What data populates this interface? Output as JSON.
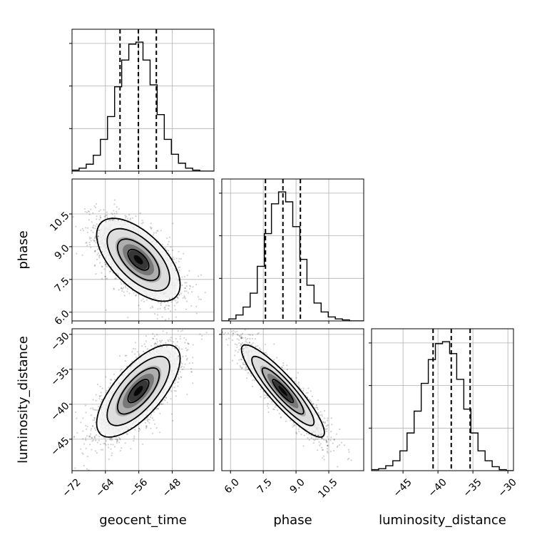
{
  "chart_data": {
    "type": "corner",
    "parameters": [
      "geocent_time",
      "phase",
      "luminosity_distance"
    ],
    "axis_labels": {
      "x": [
        "geocent_time",
        "phase",
        "luminosity_distance"
      ],
      "y": [
        "phase",
        "luminosity_distance"
      ]
    },
    "ranges": {
      "geocent_time": [
        -72,
        -38
      ],
      "phase": [
        5.6,
        12.1
      ],
      "luminosity_distance": [
        -49.5,
        -29.2
      ]
    },
    "ticks": {
      "geocent_time": [
        "−72",
        "−64",
        "−56",
        "−48"
      ],
      "phase": [
        "6.0",
        "7.5",
        "9.0",
        "10.5"
      ],
      "luminosity_distance": [
        "−45",
        "−40",
        "−35",
        "−30"
      ]
    },
    "tick_values": {
      "geocent_time": [
        -72,
        -64,
        -56,
        -48
      ],
      "phase": [
        6.0,
        7.5,
        9.0,
        10.5
      ],
      "luminosity_distance": [
        -45,
        -40,
        -35,
        -30
      ]
    },
    "quantiles": {
      "geocent_time": [
        -60.5,
        -56.1,
        -51.8
      ],
      "phase": [
        7.6,
        8.4,
        9.2
      ],
      "luminosity_distance": [
        -40.7,
        -38.1,
        -35.4
      ]
    },
    "marginals": {
      "geocent_time": {
        "bins": [
          -72.0,
          -70.3,
          -68.6,
          -66.9,
          -65.2,
          -63.5,
          -61.8,
          -60.1,
          -58.4,
          -56.7,
          -55.0,
          -53.3,
          -51.6,
          -49.9,
          -48.2,
          -46.5,
          -44.8,
          -43.1,
          -41.4,
          -39.7,
          -38.0
        ],
        "counts": [
          1,
          3,
          7,
          16,
          32,
          55,
          85,
          112,
          128,
          130,
          112,
          87,
          57,
          32,
          17,
          8,
          3,
          1,
          0,
          0
        ]
      },
      "phase": {
        "bins": [
          5.6,
          5.925,
          6.25,
          6.575,
          6.9,
          7.225,
          7.55,
          7.875,
          8.2,
          8.525,
          8.85,
          9.175,
          9.5,
          9.825,
          10.15,
          10.475,
          10.8,
          11.125,
          11.45,
          11.775,
          12.1
        ],
        "counts": [
          0,
          2,
          6,
          14,
          28,
          55,
          88,
          118,
          130,
          120,
          95,
          62,
          36,
          18,
          9,
          4,
          2,
          1,
          0,
          0
        ]
      },
      "luminosity_distance": {
        "bins": [
          -49.5,
          -48.485,
          -47.47,
          -46.455,
          -45.44,
          -44.425,
          -43.41,
          -42.395,
          -41.38,
          -40.365,
          -39.35,
          -38.335,
          -37.32,
          -36.305,
          -35.29,
          -34.275,
          -33.26,
          -32.245,
          -31.23,
          -30.215,
          -29.2
        ],
        "counts": [
          1,
          2,
          5,
          10,
          20,
          38,
          60,
          88,
          112,
          128,
          130,
          118,
          92,
          62,
          38,
          20,
          10,
          4,
          1,
          0
        ]
      }
    },
    "pairs": [
      {
        "x": "geocent_time",
        "y": "phase",
        "correlation": -0.6,
        "center": [
          -56.1,
          8.4
        ],
        "sigma": [
          5.0,
          0.95
        ]
      },
      {
        "x": "geocent_time",
        "y": "luminosity_distance",
        "correlation": 0.7,
        "center": [
          -56.1,
          -38.1
        ],
        "sigma": [
          5.0,
          3.3
        ]
      },
      {
        "x": "phase",
        "y": "luminosity_distance",
        "correlation": -0.9,
        "center": [
          8.4,
          -38.1
        ],
        "sigma": [
          0.95,
          3.3
        ]
      }
    ],
    "contour_levels_sigma": [
      0.5,
      1.0,
      1.5,
      2.0
    ],
    "grid": true,
    "colors": {
      "line": "#000000",
      "grid": "#b0b0b0",
      "points": "#000000",
      "density_low": "#e6e6e6",
      "density_high": "#000000"
    }
  }
}
